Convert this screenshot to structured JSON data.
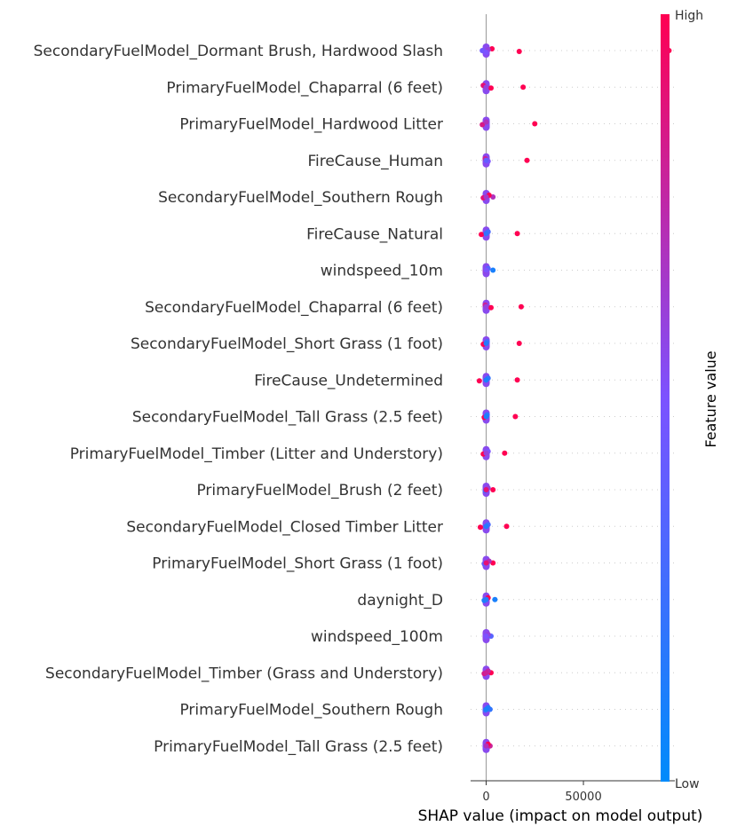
{
  "chart_data": {
    "type": "scatter",
    "xlabel": "SHAP value (impact on model output)",
    "xticks": [
      0,
      50000
    ],
    "xlim": [
      -8000,
      97000
    ],
    "colorbar": {
      "title": "Feature value",
      "high_label": "High",
      "low_label": "Low",
      "low_color": "#008bfb",
      "high_color": "#ff0052"
    },
    "features": [
      {
        "name": "SecondaryFuelModel_Dormant Brush, Hardwood Slash",
        "points": [
          {
            "x": 94000,
            "v": 1
          },
          {
            "x": 17000,
            "v": 1
          },
          {
            "x": 3000,
            "v": 1
          },
          {
            "x": -2000,
            "v": 0.45
          },
          {
            "x": 1000,
            "v": 0.6
          },
          {
            "x": 0,
            "v": 0.5
          }
        ]
      },
      {
        "name": "PrimaryFuelModel_Chaparral (6 feet)",
        "points": [
          {
            "x": 19000,
            "v": 1
          },
          {
            "x": 2500,
            "v": 1
          },
          {
            "x": -1500,
            "v": 0.9
          },
          {
            "x": 0,
            "v": 0.6
          }
        ]
      },
      {
        "name": "PrimaryFuelModel_Hardwood Litter",
        "points": [
          {
            "x": 25000,
            "v": 1
          },
          {
            "x": -2000,
            "v": 0.85
          },
          {
            "x": 0,
            "v": 0.7
          }
        ]
      },
      {
        "name": "FireCause_Human",
        "points": [
          {
            "x": 21000,
            "v": 1
          },
          {
            "x": 1000,
            "v": 0.5
          },
          {
            "x": -500,
            "v": 0.8
          },
          {
            "x": 0,
            "v": 0.4
          }
        ]
      },
      {
        "name": "SecondaryFuelModel_Southern Rough",
        "points": [
          {
            "x": 3500,
            "v": 0.7
          },
          {
            "x": -1500,
            "v": 0.9
          },
          {
            "x": 1500,
            "v": 1
          },
          {
            "x": 0,
            "v": 0.65
          }
        ]
      },
      {
        "name": "FireCause_Natural",
        "points": [
          {
            "x": 16000,
            "v": 1
          },
          {
            "x": -2500,
            "v": 1
          },
          {
            "x": 1000,
            "v": 0.3
          },
          {
            "x": 0,
            "v": 0.2
          }
        ]
      },
      {
        "name": "windspeed_10m",
        "points": [
          {
            "x": 3500,
            "v": 0.1
          },
          {
            "x": -500,
            "v": 0.6
          },
          {
            "x": 1000,
            "v": 0.35
          },
          {
            "x": 0,
            "v": 0.5
          }
        ]
      },
      {
        "name": "SecondaryFuelModel_Chaparral (6 feet)",
        "points": [
          {
            "x": 18000,
            "v": 1
          },
          {
            "x": 2500,
            "v": 1
          },
          {
            "x": -500,
            "v": 0.8
          },
          {
            "x": 0,
            "v": 0.6
          }
        ]
      },
      {
        "name": "SecondaryFuelModel_Short Grass (1 foot)",
        "points": [
          {
            "x": 17000,
            "v": 1
          },
          {
            "x": -1500,
            "v": 1
          },
          {
            "x": 500,
            "v": 0.3
          },
          {
            "x": 0,
            "v": 0.15
          }
        ]
      },
      {
        "name": "FireCause_Undetermined",
        "points": [
          {
            "x": 16000,
            "v": 1
          },
          {
            "x": -3500,
            "v": 1
          },
          {
            "x": 1000,
            "v": 0.2
          },
          {
            "x": 0,
            "v": 0.1
          }
        ]
      },
      {
        "name": "SecondaryFuelModel_Tall Grass (2.5 feet)",
        "points": [
          {
            "x": 15000,
            "v": 1
          },
          {
            "x": -1000,
            "v": 1
          },
          {
            "x": 500,
            "v": 0.2
          },
          {
            "x": 0,
            "v": 0.1
          }
        ]
      },
      {
        "name": "PrimaryFuelModel_Timber (Litter and Understory)",
        "points": [
          {
            "x": 9500,
            "v": 1
          },
          {
            "x": -1500,
            "v": 1
          },
          {
            "x": 1000,
            "v": 0.5
          },
          {
            "x": 0,
            "v": 0.6
          }
        ]
      },
      {
        "name": "PrimaryFuelModel_Brush (2 feet)",
        "points": [
          {
            "x": 3500,
            "v": 1
          },
          {
            "x": -500,
            "v": 0.3
          },
          {
            "x": 1000,
            "v": 0.6
          },
          {
            "x": 0,
            "v": 0.9
          }
        ]
      },
      {
        "name": "SecondaryFuelModel_Closed Timber Litter",
        "points": [
          {
            "x": 10500,
            "v": 1
          },
          {
            "x": -3000,
            "v": 1
          },
          {
            "x": 1000,
            "v": 0.3
          },
          {
            "x": 0,
            "v": 0.15
          }
        ]
      },
      {
        "name": "PrimaryFuelModel_Short Grass (1 foot)",
        "points": [
          {
            "x": 3500,
            "v": 1
          },
          {
            "x": -1000,
            "v": 0.4
          },
          {
            "x": 1500,
            "v": 0.7
          },
          {
            "x": 0,
            "v": 0.9
          }
        ]
      },
      {
        "name": "daynight_D",
        "points": [
          {
            "x": 4500,
            "v": 0.1
          },
          {
            "x": -1000,
            "v": 0.1
          },
          {
            "x": 1000,
            "v": 1
          },
          {
            "x": 0,
            "v": 0.15
          }
        ]
      },
      {
        "name": "windspeed_100m",
        "points": [
          {
            "x": 2500,
            "v": 0.35
          },
          {
            "x": -500,
            "v": 0.55
          },
          {
            "x": 1000,
            "v": 0.6
          },
          {
            "x": 0,
            "v": 0.5
          }
        ]
      },
      {
        "name": "SecondaryFuelModel_Timber (Grass and Understory)",
        "points": [
          {
            "x": 2500,
            "v": 1
          },
          {
            "x": -1000,
            "v": 0.85
          },
          {
            "x": 1000,
            "v": 0.75
          },
          {
            "x": 0,
            "v": 0.8
          }
        ]
      },
      {
        "name": "PrimaryFuelModel_Southern Rough",
        "points": [
          {
            "x": 2000,
            "v": 0.2
          },
          {
            "x": -500,
            "v": 0.3
          },
          {
            "x": 1000,
            "v": 0.15
          },
          {
            "x": 0,
            "v": 0.1
          }
        ]
      },
      {
        "name": "PrimaryFuelModel_Tall Grass (2.5 feet)",
        "points": [
          {
            "x": 2000,
            "v": 0.8
          },
          {
            "x": -500,
            "v": 0.5
          },
          {
            "x": 1000,
            "v": 1
          },
          {
            "x": 0,
            "v": 0.7
          }
        ]
      }
    ]
  }
}
